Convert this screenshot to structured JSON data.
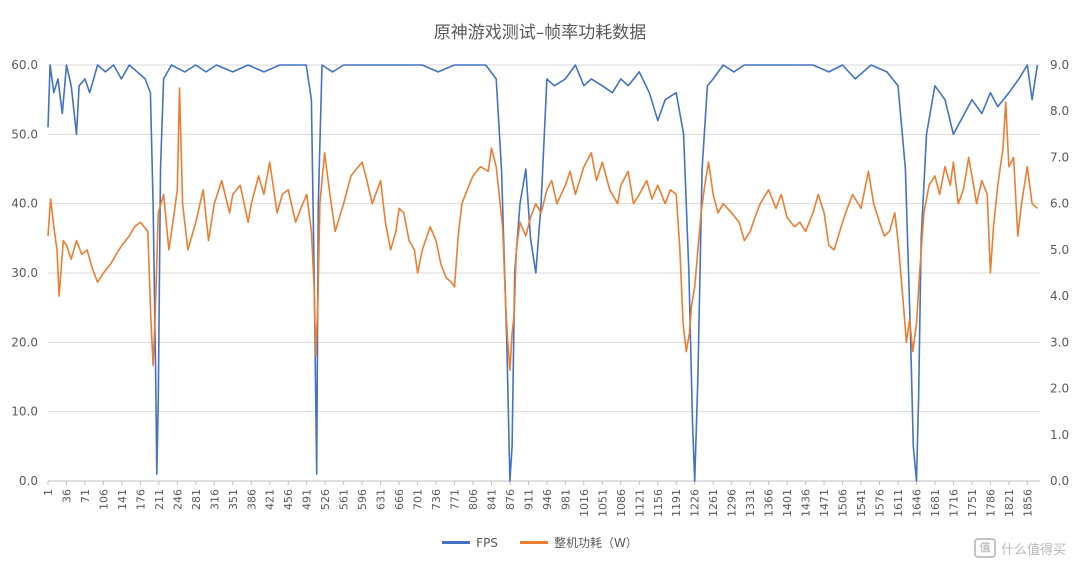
{
  "chart_data": {
    "type": "line",
    "title": "原神游戏测试–帧率功耗数据",
    "xlabel": "",
    "ylabel": "",
    "y2label": "",
    "x_range": [
      1,
      1880
    ],
    "ylim": [
      0,
      60
    ],
    "y_ticks": [
      "0.0",
      "10.0",
      "20.0",
      "30.0",
      "40.0",
      "50.0",
      "60.0"
    ],
    "y2lim": [
      0,
      9
    ],
    "y2_ticks": [
      "0.0",
      "1.0",
      "2.0",
      "3.0",
      "4.0",
      "5.0",
      "6.0",
      "7.0",
      "8.0",
      "9.0"
    ],
    "x_ticks": [
      "1",
      "36",
      "71",
      "106",
      "141",
      "176",
      "211",
      "246",
      "281",
      "316",
      "351",
      "386",
      "421",
      "456",
      "491",
      "526",
      "561",
      "596",
      "631",
      "666",
      "701",
      "736",
      "771",
      "806",
      "841",
      "876",
      "911",
      "946",
      "981",
      "1016",
      "1051",
      "1086",
      "1121",
      "1156",
      "1191",
      "1226",
      "1261",
      "1296",
      "1331",
      "1366",
      "1401",
      "1436",
      "1471",
      "1506",
      "1541",
      "1576",
      "1611",
      "1646",
      "1681",
      "1716",
      "1751",
      "1786",
      "1821",
      "1856"
    ],
    "grid": "horizontal",
    "legend_position": "bottom",
    "series": [
      {
        "name": "FPS",
        "axis": "left",
        "color": "#4472C4",
        "points": [
          [
            1,
            51
          ],
          [
            5,
            60
          ],
          [
            12,
            56
          ],
          [
            20,
            58
          ],
          [
            28,
            53
          ],
          [
            36,
            60
          ],
          [
            45,
            57
          ],
          [
            55,
            50
          ],
          [
            60,
            57
          ],
          [
            71,
            58
          ],
          [
            80,
            56
          ],
          [
            95,
            60
          ],
          [
            110,
            59
          ],
          [
            125,
            60
          ],
          [
            140,
            58
          ],
          [
            155,
            60
          ],
          [
            170,
            59
          ],
          [
            185,
            58
          ],
          [
            195,
            56
          ],
          [
            200,
            40
          ],
          [
            205,
            15
          ],
          [
            207,
            1
          ],
          [
            210,
            12
          ],
          [
            214,
            45
          ],
          [
            220,
            58
          ],
          [
            235,
            60
          ],
          [
            260,
            59
          ],
          [
            281,
            60
          ],
          [
            300,
            59
          ],
          [
            320,
            60
          ],
          [
            351,
            59
          ],
          [
            380,
            60
          ],
          [
            410,
            59
          ],
          [
            440,
            60
          ],
          [
            470,
            60
          ],
          [
            490,
            60
          ],
          [
            500,
            55
          ],
          [
            505,
            30
          ],
          [
            510,
            1
          ],
          [
            513,
            40
          ],
          [
            520,
            60
          ],
          [
            540,
            59
          ],
          [
            561,
            60
          ],
          [
            590,
            60
          ],
          [
            620,
            60
          ],
          [
            650,
            60
          ],
          [
            680,
            60
          ],
          [
            710,
            60
          ],
          [
            740,
            59
          ],
          [
            771,
            60
          ],
          [
            800,
            60
          ],
          [
            830,
            60
          ],
          [
            850,
            58
          ],
          [
            860,
            45
          ],
          [
            870,
            20
          ],
          [
            876,
            0
          ],
          [
            880,
            5
          ],
          [
            885,
            30
          ],
          [
            895,
            40
          ],
          [
            906,
            45
          ],
          [
            915,
            35
          ],
          [
            925,
            30
          ],
          [
            935,
            40
          ],
          [
            946,
            58
          ],
          [
            960,
            57
          ],
          [
            981,
            58
          ],
          [
            1000,
            60
          ],
          [
            1016,
            57
          ],
          [
            1030,
            58
          ],
          [
            1051,
            57
          ],
          [
            1070,
            56
          ],
          [
            1086,
            58
          ],
          [
            1100,
            57
          ],
          [
            1121,
            59
          ],
          [
            1140,
            56
          ],
          [
            1156,
            52
          ],
          [
            1170,
            55
          ],
          [
            1191,
            56
          ],
          [
            1205,
            50
          ],
          [
            1215,
            30
          ],
          [
            1222,
            8
          ],
          [
            1226,
            0
          ],
          [
            1232,
            15
          ],
          [
            1240,
            45
          ],
          [
            1250,
            57
          ],
          [
            1261,
            58
          ],
          [
            1280,
            60
          ],
          [
            1300,
            59
          ],
          [
            1320,
            60
          ],
          [
            1340,
            60
          ],
          [
            1366,
            60
          ],
          [
            1390,
            60
          ],
          [
            1420,
            60
          ],
          [
            1450,
            60
          ],
          [
            1480,
            59
          ],
          [
            1506,
            60
          ],
          [
            1530,
            58
          ],
          [
            1560,
            60
          ],
          [
            1590,
            59
          ],
          [
            1611,
            57
          ],
          [
            1625,
            45
          ],
          [
            1635,
            20
          ],
          [
            1640,
            5
          ],
          [
            1646,
            0
          ],
          [
            1650,
            12
          ],
          [
            1655,
            35
          ],
          [
            1665,
            50
          ],
          [
            1681,
            57
          ],
          [
            1700,
            55
          ],
          [
            1716,
            50
          ],
          [
            1730,
            52
          ],
          [
            1751,
            55
          ],
          [
            1770,
            53
          ],
          [
            1786,
            56
          ],
          [
            1800,
            54
          ],
          [
            1821,
            56
          ],
          [
            1840,
            58
          ],
          [
            1856,
            60
          ],
          [
            1865,
            55
          ],
          [
            1875,
            60
          ]
        ]
      },
      {
        "name": "整机功耗（W）",
        "axis": "right",
        "color": "#ED7D31",
        "points": [
          [
            1,
            5.3
          ],
          [
            6,
            6.1
          ],
          [
            12,
            5.5
          ],
          [
            18,
            5.0
          ],
          [
            22,
            4.0
          ],
          [
            30,
            5.2
          ],
          [
            36,
            5.1
          ],
          [
            45,
            4.8
          ],
          [
            55,
            5.2
          ],
          [
            65,
            4.9
          ],
          [
            75,
            5.0
          ],
          [
            85,
            4.6
          ],
          [
            95,
            4.3
          ],
          [
            106,
            4.5
          ],
          [
            120,
            4.7
          ],
          [
            130,
            4.9
          ],
          [
            141,
            5.1
          ],
          [
            155,
            5.3
          ],
          [
            165,
            5.5
          ],
          [
            176,
            5.6
          ],
          [
            190,
            5.4
          ],
          [
            196,
            3.5
          ],
          [
            200,
            2.5
          ],
          [
            204,
            3.6
          ],
          [
            210,
            5.8
          ],
          [
            220,
            6.2
          ],
          [
            230,
            5.0
          ],
          [
            240,
            5.8
          ],
          [
            246,
            6.3
          ],
          [
            250,
            8.5
          ],
          [
            256,
            6.0
          ],
          [
            266,
            5.0
          ],
          [
            281,
            5.6
          ],
          [
            295,
            6.3
          ],
          [
            305,
            5.2
          ],
          [
            316,
            6.0
          ],
          [
            330,
            6.5
          ],
          [
            345,
            5.8
          ],
          [
            351,
            6.2
          ],
          [
            365,
            6.4
          ],
          [
            380,
            5.6
          ],
          [
            386,
            6.0
          ],
          [
            400,
            6.6
          ],
          [
            410,
            6.2
          ],
          [
            421,
            6.9
          ],
          [
            435,
            5.8
          ],
          [
            445,
            6.2
          ],
          [
            456,
            6.3
          ],
          [
            470,
            5.6
          ],
          [
            480,
            5.9
          ],
          [
            491,
            6.2
          ],
          [
            500,
            5.4
          ],
          [
            505,
            4.2
          ],
          [
            508,
            2.7
          ],
          [
            512,
            3.8
          ],
          [
            516,
            6.0
          ],
          [
            525,
            7.1
          ],
          [
            535,
            6.2
          ],
          [
            545,
            5.4
          ],
          [
            561,
            6.0
          ],
          [
            575,
            6.6
          ],
          [
            596,
            6.9
          ],
          [
            605,
            6.5
          ],
          [
            615,
            6.0
          ],
          [
            631,
            6.5
          ],
          [
            640,
            5.6
          ],
          [
            650,
            5.0
          ],
          [
            660,
            5.4
          ],
          [
            666,
            5.9
          ],
          [
            675,
            5.8
          ],
          [
            685,
            5.2
          ],
          [
            695,
            5.0
          ],
          [
            701,
            4.5
          ],
          [
            710,
            5.0
          ],
          [
            725,
            5.5
          ],
          [
            736,
            5.2
          ],
          [
            745,
            4.7
          ],
          [
            755,
            4.4
          ],
          [
            765,
            4.3
          ],
          [
            771,
            4.2
          ],
          [
            778,
            5.3
          ],
          [
            785,
            6.0
          ],
          [
            795,
            6.3
          ],
          [
            806,
            6.6
          ],
          [
            820,
            6.8
          ],
          [
            835,
            6.7
          ],
          [
            841,
            7.2
          ],
          [
            850,
            6.8
          ],
          [
            862,
            5.5
          ],
          [
            868,
            3.8
          ],
          [
            872,
            3.0
          ],
          [
            876,
            2.4
          ],
          [
            880,
            3.2
          ],
          [
            884,
            3.6
          ],
          [
            888,
            5.0
          ],
          [
            895,
            5.6
          ],
          [
            906,
            5.3
          ],
          [
            915,
            5.7
          ],
          [
            925,
            6.0
          ],
          [
            935,
            5.8
          ],
          [
            946,
            6.3
          ],
          [
            955,
            6.5
          ],
          [
            965,
            6.0
          ],
          [
            981,
            6.4
          ],
          [
            990,
            6.7
          ],
          [
            1000,
            6.2
          ],
          [
            1016,
            6.8
          ],
          [
            1030,
            7.1
          ],
          [
            1040,
            6.5
          ],
          [
            1051,
            6.9
          ],
          [
            1065,
            6.3
          ],
          [
            1080,
            6.0
          ],
          [
            1086,
            6.4
          ],
          [
            1100,
            6.7
          ],
          [
            1110,
            6.0
          ],
          [
            1121,
            6.2
          ],
          [
            1135,
            6.5
          ],
          [
            1145,
            6.1
          ],
          [
            1156,
            6.4
          ],
          [
            1170,
            6.0
          ],
          [
            1180,
            6.3
          ],
          [
            1191,
            6.2
          ],
          [
            1198,
            5.0
          ],
          [
            1204,
            3.4
          ],
          [
            1210,
            2.8
          ],
          [
            1216,
            3.2
          ],
          [
            1220,
            3.8
          ],
          [
            1226,
            4.2
          ],
          [
            1232,
            5.0
          ],
          [
            1238,
            5.8
          ],
          [
            1245,
            6.4
          ],
          [
            1252,
            6.9
          ],
          [
            1261,
            6.2
          ],
          [
            1270,
            5.8
          ],
          [
            1280,
            6.0
          ],
          [
            1296,
            5.8
          ],
          [
            1310,
            5.6
          ],
          [
            1320,
            5.2
          ],
          [
            1331,
            5.4
          ],
          [
            1340,
            5.7
          ],
          [
            1350,
            6.0
          ],
          [
            1366,
            6.3
          ],
          [
            1380,
            5.9
          ],
          [
            1390,
            6.2
          ],
          [
            1401,
            5.7
          ],
          [
            1415,
            5.5
          ],
          [
            1425,
            5.6
          ],
          [
            1436,
            5.4
          ],
          [
            1450,
            5.8
          ],
          [
            1460,
            6.2
          ],
          [
            1471,
            5.8
          ],
          [
            1480,
            5.1
          ],
          [
            1490,
            5.0
          ],
          [
            1506,
            5.6
          ],
          [
            1515,
            5.9
          ],
          [
            1525,
            6.2
          ],
          [
            1541,
            5.9
          ],
          [
            1555,
            6.7
          ],
          [
            1565,
            6.0
          ],
          [
            1576,
            5.6
          ],
          [
            1585,
            5.3
          ],
          [
            1595,
            5.4
          ],
          [
            1605,
            5.8
          ],
          [
            1611,
            5.2
          ],
          [
            1620,
            4.0
          ],
          [
            1627,
            3.0
          ],
          [
            1633,
            3.5
          ],
          [
            1639,
            2.8
          ],
          [
            1646,
            3.4
          ],
          [
            1652,
            4.5
          ],
          [
            1660,
            5.8
          ],
          [
            1670,
            6.4
          ],
          [
            1681,
            6.6
          ],
          [
            1690,
            6.2
          ],
          [
            1700,
            6.8
          ],
          [
            1710,
            6.4
          ],
          [
            1716,
            6.9
          ],
          [
            1725,
            6.0
          ],
          [
            1735,
            6.3
          ],
          [
            1745,
            7.0
          ],
          [
            1751,
            6.6
          ],
          [
            1760,
            6.0
          ],
          [
            1770,
            6.5
          ],
          [
            1780,
            6.2
          ],
          [
            1786,
            4.5
          ],
          [
            1792,
            5.5
          ],
          [
            1800,
            6.4
          ],
          [
            1810,
            7.2
          ],
          [
            1815,
            8.2
          ],
          [
            1821,
            6.8
          ],
          [
            1830,
            7.0
          ],
          [
            1838,
            5.3
          ],
          [
            1845,
            6.0
          ],
          [
            1856,
            6.8
          ],
          [
            1865,
            6.0
          ],
          [
            1875,
            5.9
          ]
        ]
      }
    ]
  },
  "watermark": {
    "badge": "值",
    "text": "什么值得买"
  }
}
